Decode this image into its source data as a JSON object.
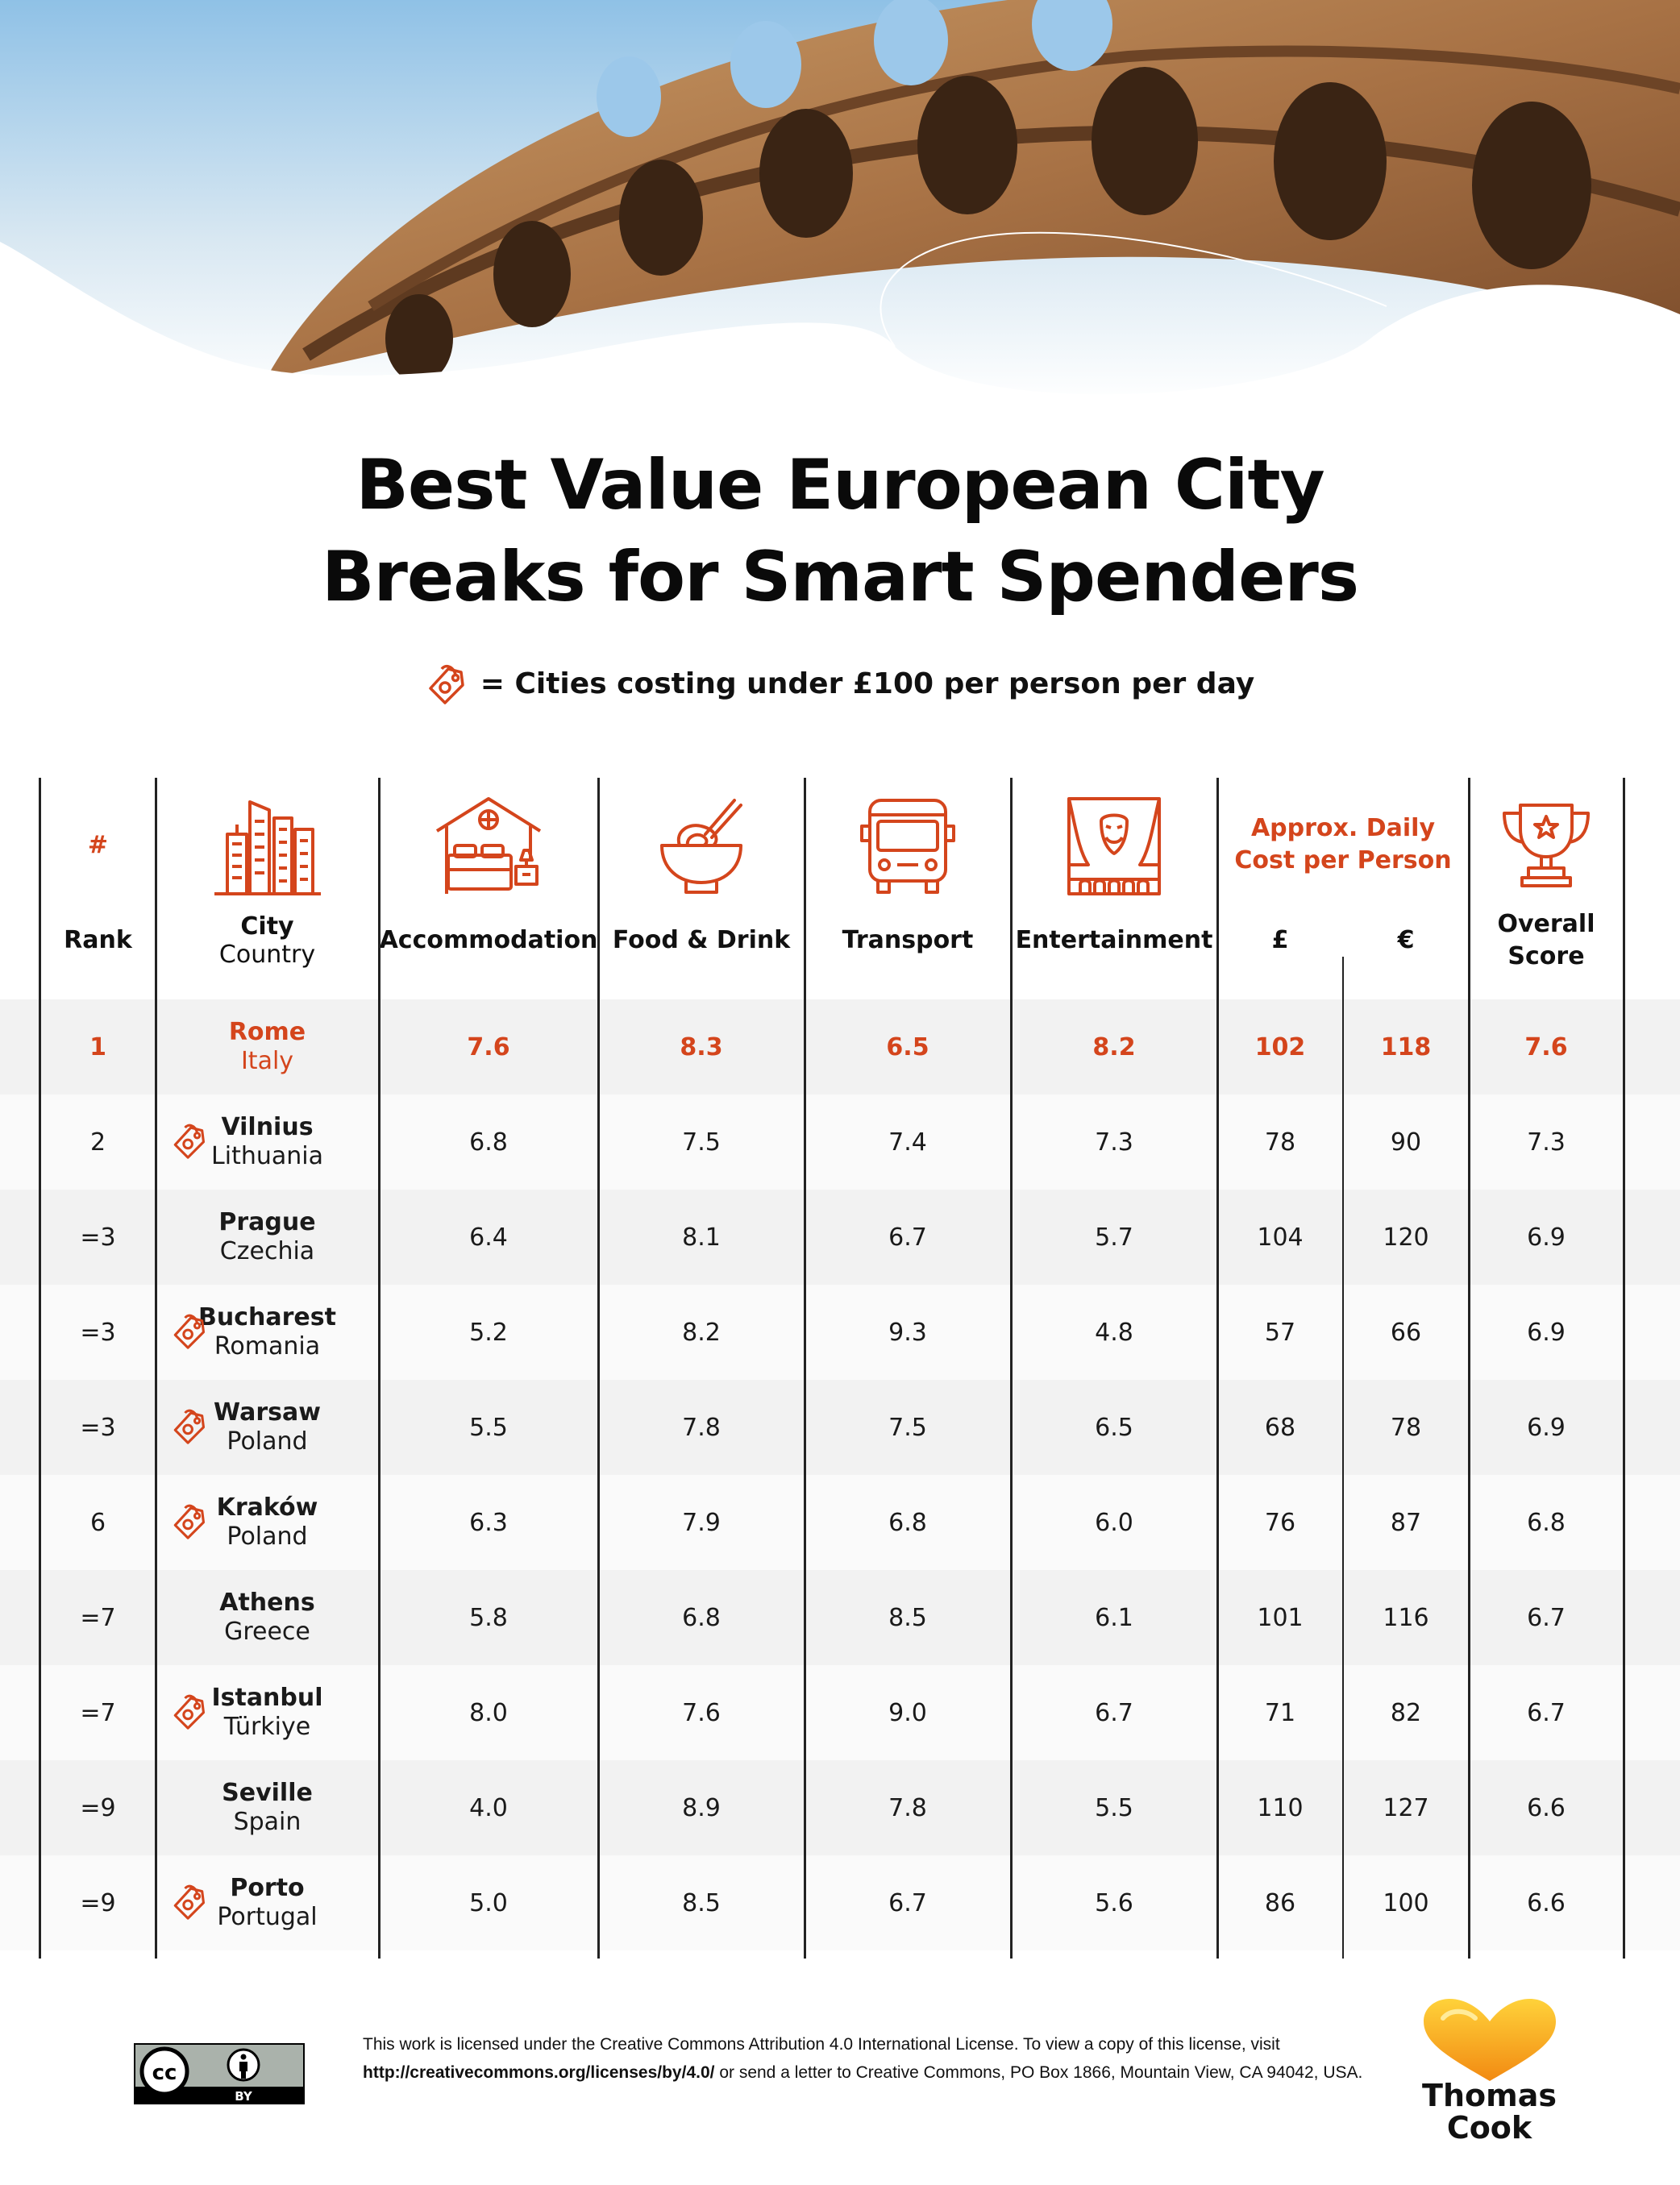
{
  "title": {
    "line1": "Best Value European City",
    "line2": "Breaks for Smart Spenders"
  },
  "legend": {
    "icon": "price-tag-icon",
    "text": "= Cities costing under £100 per person per day"
  },
  "colors": {
    "accent": "#d4451c",
    "row_shade": "#f2f2f2",
    "row_light": "#fafafa",
    "text": "#111111"
  },
  "table": {
    "headers": {
      "rank_symbol": "#",
      "rank": "Rank",
      "city": "City",
      "country": "Country",
      "accommodation": "Accommodation",
      "food_drink": "Food & Drink",
      "transport": "Transport",
      "entertainment": "Entertainment",
      "daily_cost": "Approx. Daily Cost per Person",
      "gbp": "£",
      "eur": "€",
      "overall_line1": "Overall",
      "overall_line2": "Score"
    },
    "header_icons": [
      "city-buildings-icon",
      "bed-icon",
      "noodle-bowl-icon",
      "bus-icon",
      "theatre-icon",
      "trophy-icon"
    ],
    "rows": [
      {
        "rank": "1",
        "city": "Rome",
        "country": "Italy",
        "budget": false,
        "accommodation": "7.6",
        "food": "8.3",
        "transport": "6.5",
        "entertainment": "8.2",
        "gbp": "102",
        "eur": "118",
        "overall": "7.6"
      },
      {
        "rank": "2",
        "city": "Vilnius",
        "country": "Lithuania",
        "budget": true,
        "accommodation": "6.8",
        "food": "7.5",
        "transport": "7.4",
        "entertainment": "7.3",
        "gbp": "78",
        "eur": "90",
        "overall": "7.3"
      },
      {
        "rank": "=3",
        "city": "Prague",
        "country": "Czechia",
        "budget": false,
        "accommodation": "6.4",
        "food": "8.1",
        "transport": "6.7",
        "entertainment": "5.7",
        "gbp": "104",
        "eur": "120",
        "overall": "6.9"
      },
      {
        "rank": "=3",
        "city": "Bucharest",
        "country": "Romania",
        "budget": true,
        "accommodation": "5.2",
        "food": "8.2",
        "transport": "9.3",
        "entertainment": "4.8",
        "gbp": "57",
        "eur": "66",
        "overall": "6.9"
      },
      {
        "rank": "=3",
        "city": "Warsaw",
        "country": "Poland",
        "budget": true,
        "accommodation": "5.5",
        "food": "7.8",
        "transport": "7.5",
        "entertainment": "6.5",
        "gbp": "68",
        "eur": "78",
        "overall": "6.9"
      },
      {
        "rank": "6",
        "city": "Kraków",
        "country": "Poland",
        "budget": true,
        "accommodation": "6.3",
        "food": "7.9",
        "transport": "6.8",
        "entertainment": "6.0",
        "gbp": "76",
        "eur": "87",
        "overall": "6.8"
      },
      {
        "rank": "=7",
        "city": "Athens",
        "country": "Greece",
        "budget": false,
        "accommodation": "5.8",
        "food": "6.8",
        "transport": "8.5",
        "entertainment": "6.1",
        "gbp": "101",
        "eur": "116",
        "overall": "6.7"
      },
      {
        "rank": "=7",
        "city": "Istanbul",
        "country": "Türkiye",
        "budget": true,
        "accommodation": "8.0",
        "food": "7.6",
        "transport": "9.0",
        "entertainment": "6.7",
        "gbp": "71",
        "eur": "82",
        "overall": "6.7"
      },
      {
        "rank": "=9",
        "city": "Seville",
        "country": "Spain",
        "budget": false,
        "accommodation": "4.0",
        "food": "8.9",
        "transport": "7.8",
        "entertainment": "5.5",
        "gbp": "110",
        "eur": "127",
        "overall": "6.6"
      },
      {
        "rank": "=9",
        "city": "Porto",
        "country": "Portugal",
        "budget": true,
        "accommodation": "5.0",
        "food": "8.5",
        "transport": "6.7",
        "entertainment": "5.6",
        "gbp": "86",
        "eur": "100",
        "overall": "6.6"
      }
    ]
  },
  "footer": {
    "license_badge": {
      "cc": "cc",
      "by": "BY"
    },
    "license_text_1": "This work is licensed under the Creative Commons Attribution 4.0 International License. To view a copy of this license, visit",
    "license_link": "http://creativecommons.org/licenses/by/4.0/",
    "license_text_2": " or send a letter to Creative Commons, PO Box 1866, Mountain View, CA 94042, USA.",
    "brand_line1": "Thomas",
    "brand_line2": "Cook"
  }
}
